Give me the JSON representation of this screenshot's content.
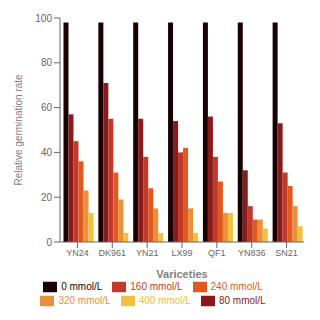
{
  "chart_data": {
    "type": "bar",
    "xlabel": "Variceties",
    "ylabel": "Relative germination rate",
    "categories": [
      "YN24",
      "DK961",
      "YN21",
      "LX99",
      "QF1",
      "YN836",
      "SN21"
    ],
    "series": [
      {
        "name": "0 mmol/L",
        "color": "#1a0000",
        "values": [
          98,
          98,
          98,
          98,
          98,
          98,
          98
        ]
      },
      {
        "name": "80 mmol/L",
        "color": "#8b1a1a",
        "values": [
          57,
          71,
          55,
          54,
          56,
          32,
          53
        ]
      },
      {
        "name": "160 mmol/L",
        "color": "#c0392b",
        "values": [
          45,
          55,
          38,
          40,
          38,
          16,
          31
        ]
      },
      {
        "name": "240 mmol/L",
        "color": "#e05a20",
        "values": [
          36,
          31,
          24,
          42,
          27,
          10,
          25
        ]
      },
      {
        "name": "320 mmol/L",
        "color": "#e8903a",
        "values": [
          23,
          19,
          15,
          15,
          13,
          10,
          16
        ]
      },
      {
        "name": "400 mmol/L",
        "color": "#f0c040",
        "values": [
          13,
          4,
          4,
          4,
          13,
          6,
          7
        ]
      }
    ],
    "ylim": [
      0,
      100
    ],
    "yticks": [
      0,
      20,
      40,
      60,
      80,
      100
    ],
    "grid": false,
    "legend": "bottom"
  }
}
